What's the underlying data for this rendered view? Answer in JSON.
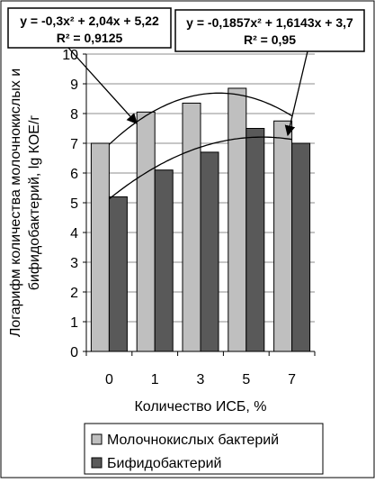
{
  "chart_data": {
    "type": "bar",
    "categories": [
      "0",
      "1",
      "3",
      "5",
      "7"
    ],
    "xlabel": "Количество ИСБ, %",
    "ylabel_lines": [
      "Логарифм количества молочнокислых и",
      "бифидобактерий, lg КОЕ/г"
    ],
    "ylim": [
      0,
      10
    ],
    "yticks": [
      0,
      1,
      2,
      3,
      4,
      5,
      6,
      7,
      8,
      9,
      10
    ],
    "grid": true,
    "legend_position": "bottom",
    "series": [
      {
        "name": "Молочнокислых бактерий",
        "values": [
          7.0,
          8.05,
          8.35,
          8.85,
          7.75
        ],
        "color": "#bfbfbf"
      },
      {
        "name": "Бифидобактерий",
        "values": [
          5.2,
          6.1,
          6.7,
          7.5,
          7.0
        ],
        "color": "#595959"
      }
    ],
    "trendlines": [
      {
        "series": 0,
        "a": -0.3,
        "b": 2.04,
        "c": 5.22,
        "equation": "y = -0,3x² + 2,04x + 5,22",
        "r2": "R² = 0,9125"
      },
      {
        "series": 1,
        "a": -0.1857,
        "b": 1.6143,
        "c": 3.7,
        "equation": "y = -0,1857x² + 1,6143x + 3,7",
        "r2": "R² = 0,95"
      }
    ]
  }
}
